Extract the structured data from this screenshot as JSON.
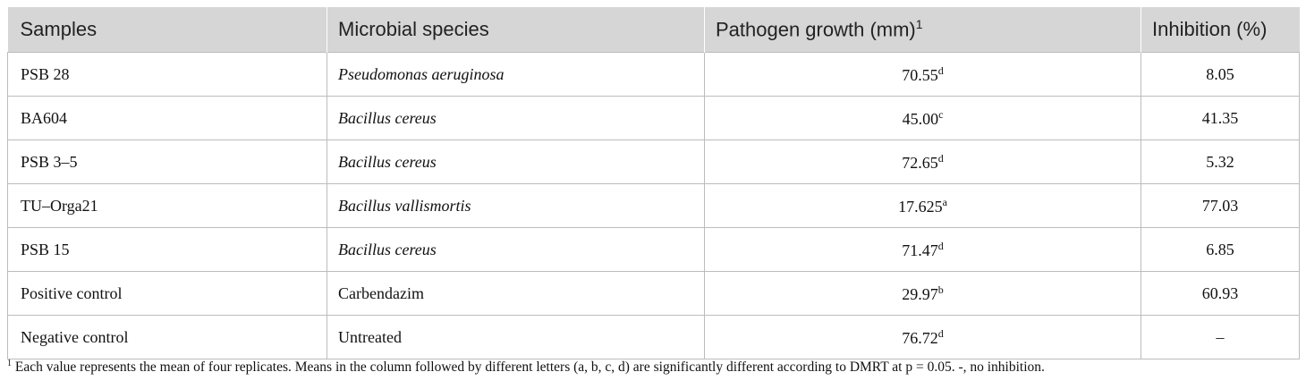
{
  "table": {
    "header": [
      "Samples",
      "Microbial species",
      "Pathogen growth (mm)",
      "Inhibition (%)"
    ],
    "header_note": "1",
    "rows": [
      {
        "sample": "PSB 28",
        "species": "Pseudomonas aeruginosa",
        "growth": "70.55",
        "letter": "d",
        "inhibition": "8.05"
      },
      {
        "sample": "BA604",
        "species": "Bacillus cereus",
        "growth": "45.00",
        "letter": "c",
        "inhibition": "41.35"
      },
      {
        "sample": "PSB 3–5",
        "species": "Bacillus cereus",
        "growth": "72.65",
        "letter": "d",
        "inhibition": "5.32"
      },
      {
        "sample": "TU–Orga21",
        "species": "Bacillus vallismortis",
        "growth": "17.625",
        "letter": "a",
        "inhibition": "77.03"
      },
      {
        "sample": "PSB 15",
        "species": "Bacillus cereus",
        "growth": "71.47",
        "letter": "d",
        "inhibition": "6.85"
      },
      {
        "sample": "Positive control",
        "species": "Carbendazim",
        "growth": "29.97",
        "letter": "b",
        "inhibition": "60.93"
      },
      {
        "sample": "Negative control",
        "species": "Untreated",
        "growth": "76.72",
        "letter": "d",
        "inhibition": "–"
      }
    ]
  },
  "footnote": {
    "marker": "1",
    "text": "Each value represents the mean of four replicates. Means in the column followed by different letters (a, b, c, d) are significantly different according to DMRT at p = 0.05. -, no inhibition."
  }
}
